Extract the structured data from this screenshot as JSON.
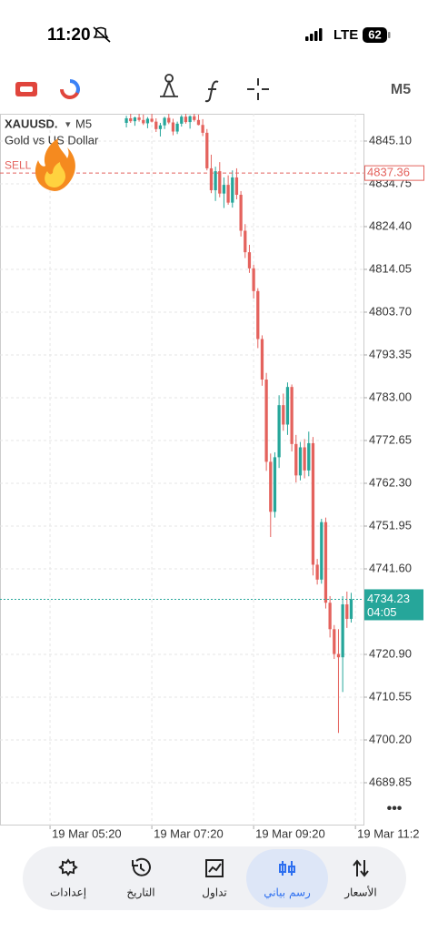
{
  "status_bar": {
    "time": "11:20",
    "network": "LTE",
    "battery": "62"
  },
  "toolbar": {
    "timeframe": "M5"
  },
  "chart_data": {
    "type": "candlestick",
    "symbol": "XAUUSD.",
    "timeframe": "M5",
    "description": "Gold vs US Dollar",
    "x": [
      18,
      19,
      20,
      21,
      22,
      23,
      24,
      25,
      26,
      27,
      28,
      29,
      30,
      31,
      32,
      33,
      34,
      35,
      36,
      37,
      38,
      39,
      40,
      41,
      42,
      43,
      44,
      45,
      46,
      47,
      48,
      49,
      50,
      51,
      52,
      53,
      54,
      55,
      56,
      57,
      58,
      59,
      60,
      61,
      62,
      63,
      64,
      65,
      66,
      67,
      68,
      69,
      70,
      71
    ],
    "candles": [
      [
        4849.5,
        4851.2,
        4848.4,
        4850.6
      ],
      [
        4850.6,
        4851.7,
        4849.5,
        4849.9
      ],
      [
        4849.9,
        4851.0,
        4848.8,
        4850.8
      ],
      [
        4850.8,
        4851.7,
        4849.8,
        4850.2
      ],
      [
        4850.2,
        4851.5,
        4849.0,
        4849.4
      ],
      [
        4849.4,
        4850.9,
        4848.2,
        4850.5
      ],
      [
        4850.5,
        4851.7,
        4849.6,
        4849.8
      ],
      [
        4849.8,
        4850.6,
        4847.3,
        4848.0
      ],
      [
        4848.0,
        4849.5,
        4846.2,
        4848.9
      ],
      [
        4848.9,
        4851.0,
        4848.0,
        4850.7
      ],
      [
        4850.7,
        4851.7,
        4849.2,
        4849.6
      ],
      [
        4849.6,
        4850.5,
        4846.5,
        4847.4
      ],
      [
        4847.4,
        4849.8,
        4846.8,
        4849.3
      ],
      [
        4849.3,
        4851.4,
        4848.6,
        4851.0
      ],
      [
        4851.0,
        4851.7,
        4849.3,
        4849.7
      ],
      [
        4849.7,
        4851.3,
        4848.1,
        4851.1
      ],
      [
        4851.1,
        4851.7,
        4849.8,
        4850.2
      ],
      [
        4850.2,
        4851.5,
        4848.9,
        4849.0
      ],
      [
        4849.0,
        4850.4,
        4846.3,
        4847.1
      ],
      [
        4847.1,
        4848.0,
        4838.0,
        4838.5
      ],
      [
        4838.5,
        4841.8,
        4832.5,
        4833.2
      ],
      [
        4833.2,
        4838.9,
        4830.6,
        4837.8
      ],
      [
        4837.8,
        4840.0,
        4831.5,
        4832.4
      ],
      [
        4832.4,
        4836.3,
        4828.9,
        4834.5
      ],
      [
        4834.5,
        4836.8,
        4829.7,
        4830.2
      ],
      [
        4830.2,
        4838.0,
        4829.0,
        4836.3
      ],
      [
        4836.3,
        4838.5,
        4831.0,
        4832.1
      ],
      [
        4832.1,
        4833.0,
        4822.0,
        4823.4
      ],
      [
        4823.4,
        4825.0,
        4816.8,
        4818.2
      ],
      [
        4818.2,
        4820.0,
        4813.2,
        4814.3
      ],
      [
        4814.3,
        4815.2,
        4807.0,
        4808.8
      ],
      [
        4808.8,
        4809.5,
        4795.0,
        4797.2
      ],
      [
        4797.2,
        4798.1,
        4785.9,
        4787.4
      ],
      [
        4787.4,
        4789.0,
        4765.3,
        4767.5
      ],
      [
        4767.5,
        4769.5,
        4749.3,
        4755.4
      ],
      [
        4755.4,
        4769.8,
        4754.0,
        4768.6
      ],
      [
        4768.6,
        4783.6,
        4766.0,
        4781.2
      ],
      [
        4781.2,
        4784.0,
        4775.0,
        4776.5
      ],
      [
        4776.5,
        4786.7,
        4774.0,
        4785.6
      ],
      [
        4785.6,
        4786.2,
        4770.0,
        4771.8
      ],
      [
        4771.8,
        4774.0,
        4762.5,
        4764.2
      ],
      [
        4764.2,
        4772.3,
        4763.0,
        4771.0
      ],
      [
        4771.0,
        4773.0,
        4763.5,
        4765.4
      ],
      [
        4765.4,
        4774.8,
        4764.0,
        4772.0
      ],
      [
        4772.0,
        4773.5,
        4740.0,
        4742.6
      ],
      [
        4742.6,
        4744.0,
        4737.8,
        4739.0
      ],
      [
        4739.0,
        4753.7,
        4738.0,
        4752.9
      ],
      [
        4752.9,
        4754.0,
        4732.0,
        4733.4
      ],
      [
        4733.4,
        4735.0,
        4725.0,
        4727.0
      ],
      [
        4727.0,
        4728.0,
        4719.8,
        4721.0
      ],
      [
        4721.0,
        4727.0,
        4701.9,
        4720.2
      ],
      [
        4720.2,
        4735.0,
        4711.8,
        4733.0
      ],
      [
        4733.0,
        4736.1,
        4727.3,
        4729.5
      ],
      [
        4729.5,
        4735.8,
        4728.6,
        4734.23
      ]
    ],
    "up_color": "#26a69a",
    "down_color": "#e4625d",
    "xlim": [
      -11.8,
      73.9
    ],
    "ylim": [
      4679.5,
      4851.7
    ],
    "xticks": [
      {
        "value": 0,
        "label": "19 Mar 05:20"
      },
      {
        "value": 24,
        "label": "19 Mar 07:20"
      },
      {
        "value": 48,
        "label": "19 Mar 09:20"
      },
      {
        "value": 72,
        "label": "19 Mar 11:2"
      }
    ],
    "yticks": [
      {
        "value": 4845.1,
        "label": "4845.10"
      },
      {
        "value": 4834.75,
        "label": "4834.75"
      },
      {
        "value": 4824.4,
        "label": "4824.40"
      },
      {
        "value": 4814.05,
        "label": "4814.05"
      },
      {
        "value": 4803.7,
        "label": "4803.70"
      },
      {
        "value": 4793.35,
        "label": "4793.35"
      },
      {
        "value": 4783.0,
        "label": "4783.00"
      },
      {
        "value": 4772.65,
        "label": "4772.65"
      },
      {
        "value": 4762.3,
        "label": "4762.30"
      },
      {
        "value": 4751.95,
        "label": "4751.95"
      },
      {
        "value": 4741.6,
        "label": "4741.60"
      },
      {
        "value": 4720.9,
        "label": "4720.90"
      },
      {
        "value": 4710.55,
        "label": "4710.55"
      },
      {
        "value": 4700.2,
        "label": "4700.20"
      },
      {
        "value": 4689.85,
        "label": "4689.85"
      }
    ],
    "grid": true,
    "price_lines": [
      {
        "label": "SELL",
        "value": 4837.36,
        "color": "#e4625d"
      },
      {
        "value": 4734.23,
        "timer": "04:05",
        "color": "#26a69a"
      }
    ]
  },
  "tab_bar": {
    "tabs": [
      "إعدادات",
      "التاريخ",
      "تداول",
      "رسم بياني",
      "الأسعار"
    ],
    "active": 3
  }
}
